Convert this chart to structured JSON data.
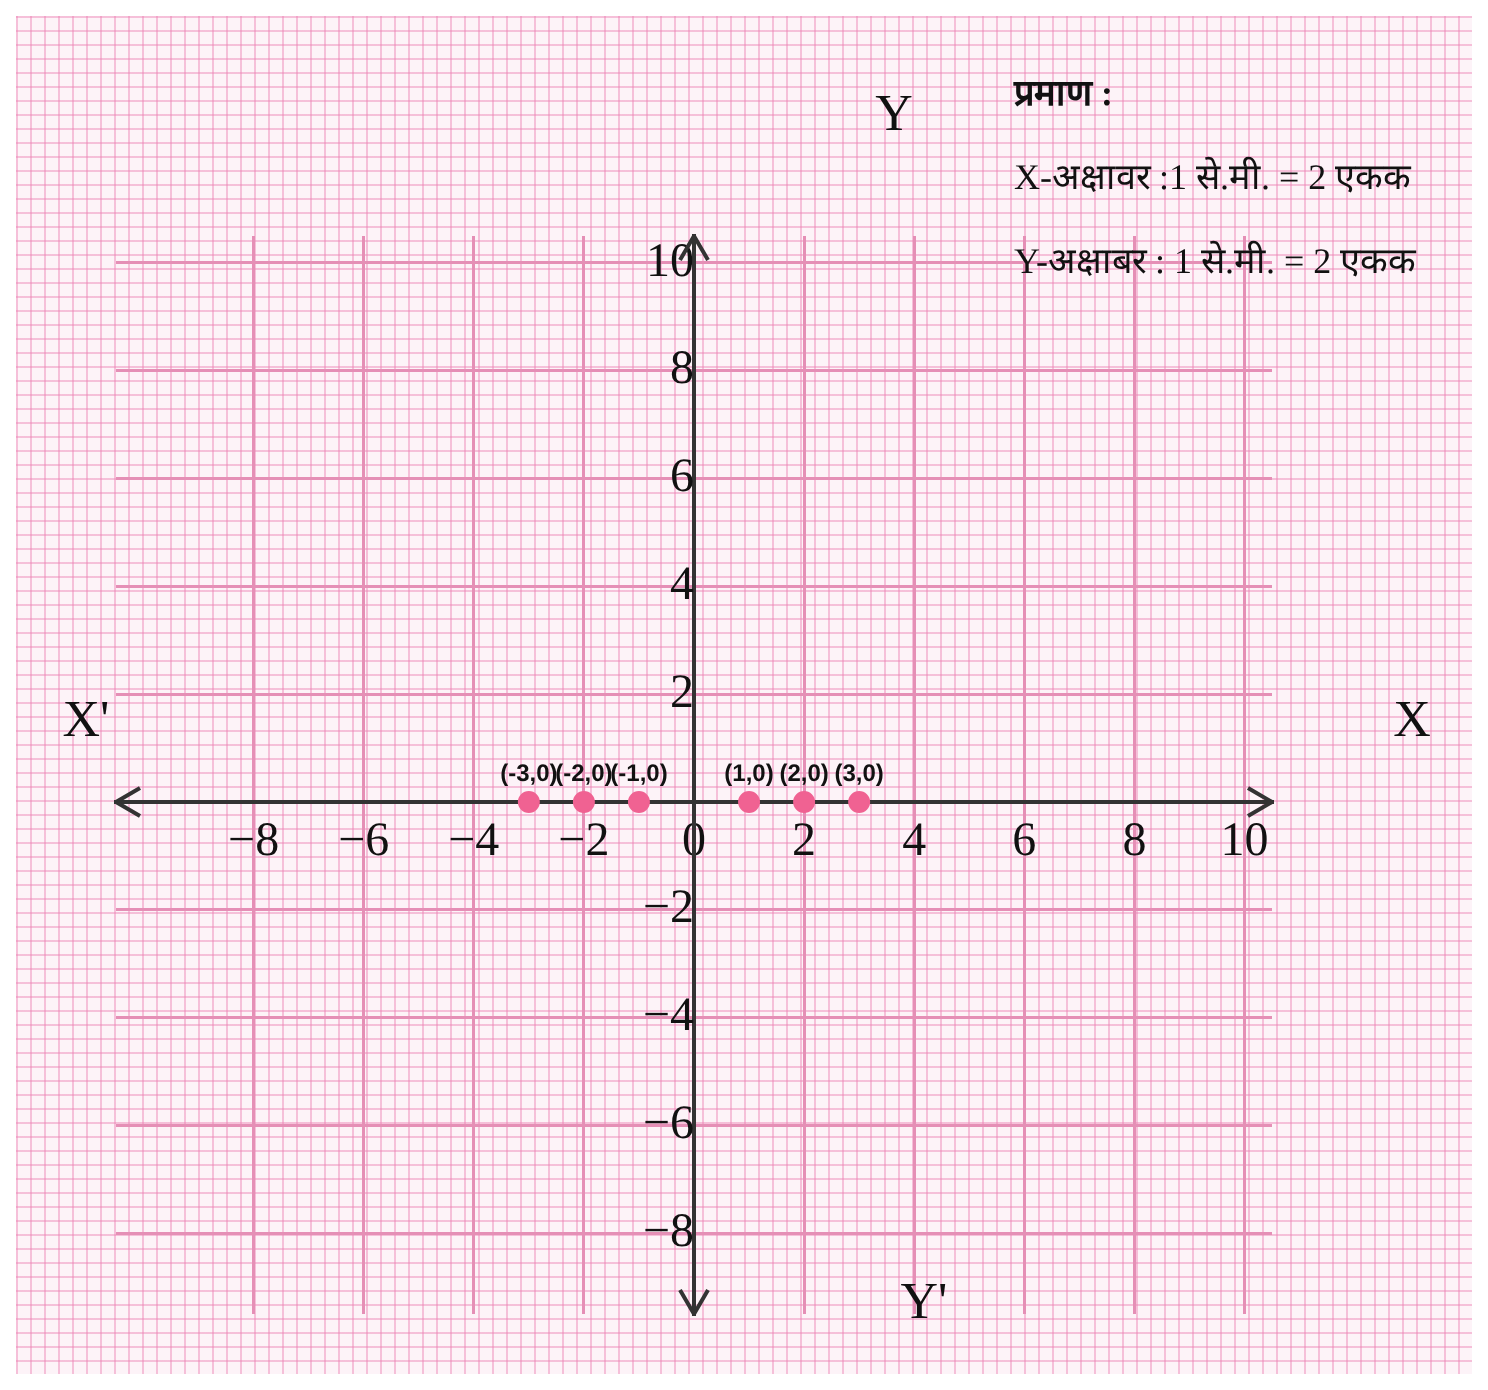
{
  "chart_data": {
    "type": "scatter",
    "xlabel": "X",
    "ylabel": "Y",
    "annotations": [
      "X'",
      "Y'",
      "प्रमाण :",
      "X-अक्षावर :1 से.मी. = 2 एकक",
      "Y-अक्षाबर : 1 से.मी. = 2 एकक",
      {
        "text": "(-3,0)",
        "x": -3,
        "y": 0
      },
      {
        "text": "(-2,0)",
        "x": -2,
        "y": 0
      },
      {
        "text": "(-1,0)",
        "x": -1,
        "y": 0
      },
      {
        "text": "(1,0)",
        "x": 1,
        "y": 0
      },
      {
        "text": "(2,0)",
        "x": 2,
        "y": 0
      },
      {
        "text": "(3,0)",
        "x": 3,
        "y": 0
      }
    ],
    "x": [
      -3,
      -2,
      -1,
      1,
      2,
      3
    ],
    "values": [
      0,
      0,
      0,
      0,
      0,
      0
    ],
    "color": "#f06292",
    "xlim": [
      -10.5,
      10.5
    ],
    "ylim": [
      -9.5,
      10.5
    ],
    "xticks": [
      -8,
      -6,
      -4,
      -2,
      0,
      2,
      4,
      6,
      8,
      10
    ],
    "yticks": [
      -8,
      -6,
      -4,
      -2,
      {
        "value": 0,
        "label": null
      },
      2,
      4,
      6,
      8,
      10
    ],
    "grid": true,
    "marker": "circle"
  }
}
